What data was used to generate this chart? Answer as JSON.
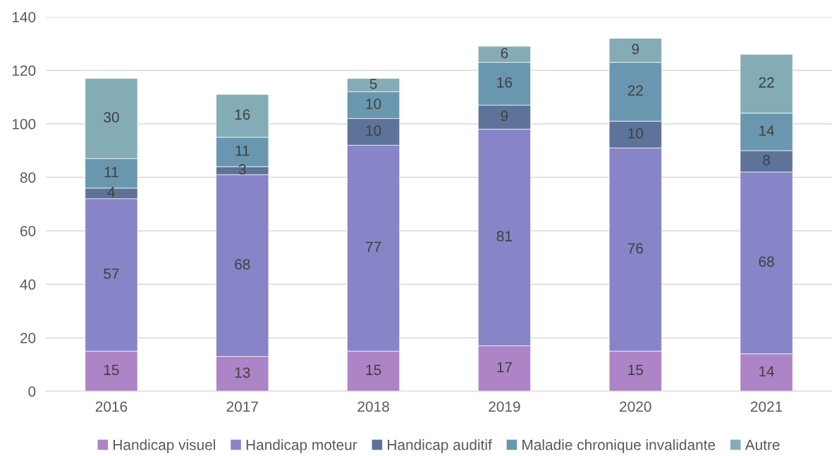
{
  "chart_data": {
    "type": "bar",
    "stacked": true,
    "categories": [
      "2016",
      "2017",
      "2018",
      "2019",
      "2020",
      "2021"
    ],
    "series": [
      {
        "name": "Handicap visuel",
        "color": "#ad84c6",
        "values": [
          15,
          13,
          15,
          17,
          15,
          14
        ]
      },
      {
        "name": "Handicap moteur",
        "color": "#8784c7",
        "values": [
          57,
          68,
          77,
          81,
          76,
          68
        ]
      },
      {
        "name": "Handicap auditif",
        "color": "#5d739a",
        "values": [
          4,
          3,
          10,
          9,
          10,
          8
        ]
      },
      {
        "name": "Maladie chronique invalidante",
        "color": "#6997af",
        "values": [
          11,
          11,
          10,
          16,
          22,
          14
        ]
      },
      {
        "name": "Autre",
        "color": "#84acb6",
        "values": [
          30,
          16,
          5,
          6,
          9,
          22
        ]
      }
    ],
    "ylim": [
      0,
      140
    ],
    "yticks": [
      0,
      20,
      40,
      60,
      80,
      100,
      120,
      140
    ],
    "grid": "y",
    "legend": "bottom",
    "data_labels": true
  }
}
